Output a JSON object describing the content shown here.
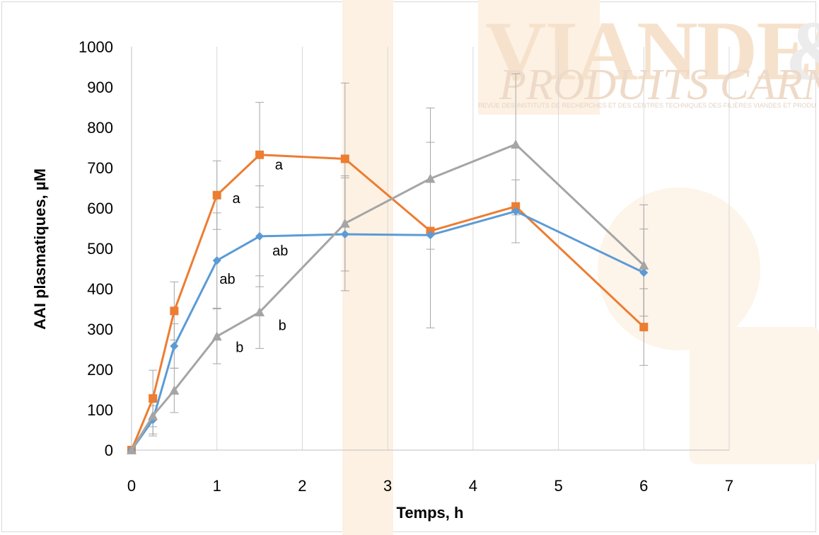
{
  "watermark": {
    "title": "VIANDES",
    "ampersand": "&",
    "subtitle": "PRODUITS CARNÉ",
    "tagline": "REVUE DES INSTITUTS DE RECHERCHES ET DES CENTRES TECHNIQUES DES FILIÈRES VIANDES ET PRODU"
  },
  "chart_data": {
    "type": "line",
    "title": "",
    "xlabel": "Temps, h",
    "ylabel": "AAI plasmatiques, µM",
    "xlim": [
      0,
      7
    ],
    "ylim": [
      0,
      1000
    ],
    "xticks": [
      0,
      1,
      2,
      3,
      4,
      5,
      6,
      7
    ],
    "yticks": [
      0,
      100,
      200,
      300,
      400,
      500,
      600,
      700,
      800,
      900,
      1000
    ],
    "grid": "vertical",
    "legend": "none",
    "series": [
      {
        "color": "#ed7d31",
        "marker": "square",
        "x": [
          0,
          0.25,
          0.5,
          1,
          1.5,
          2.5,
          3.5,
          4.5,
          6
        ],
        "y": [
          0,
          128,
          345,
          632,
          732,
          722,
          543,
          604,
          305
        ],
        "err": [
          0,
          70,
          72,
          85,
          130,
          188,
          0,
          0,
          95
        ]
      },
      {
        "color": "#5b9bd5",
        "marker": "diamond",
        "x": [
          0,
          0.25,
          0.5,
          1,
          1.5,
          2.5,
          3.5,
          4.5,
          6
        ],
        "y": [
          0,
          75,
          258,
          470,
          530,
          535,
          533,
          592,
          440
        ],
        "err": [
          0,
          35,
          55,
          118,
          125,
          140,
          230,
          78,
          108
        ]
      },
      {
        "color": "#a5a5a5",
        "marker": "triangle",
        "x": [
          0,
          0.25,
          0.5,
          1,
          1.5,
          2.5,
          3.5,
          4.5,
          6
        ],
        "y": [
          0,
          85,
          148,
          282,
          342,
          562,
          673,
          758,
          458
        ],
        "err": [
          0,
          50,
          55,
          68,
          90,
          118,
          175,
          175,
          150
        ]
      }
    ],
    "annotations": [
      {
        "text": "a",
        "x": 1.18,
        "y": 625
      },
      {
        "text": "a",
        "x": 1.68,
        "y": 708
      },
      {
        "text": "ab",
        "x": 1.03,
        "y": 425
      },
      {
        "text": "ab",
        "x": 1.65,
        "y": 495
      },
      {
        "text": "b",
        "x": 1.22,
        "y": 255
      },
      {
        "text": "b",
        "x": 1.72,
        "y": 310
      }
    ]
  }
}
